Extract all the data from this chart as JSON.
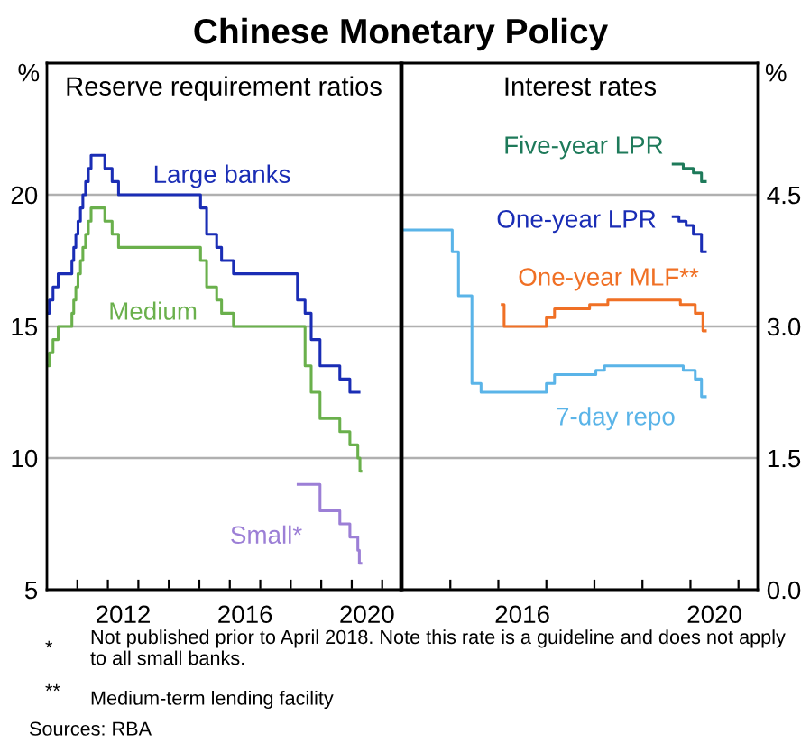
{
  "chart_data": [
    {
      "type": "step",
      "title": "Chinese Monetary Policy",
      "subtitle": "Reserve requirement ratios",
      "ylabel": "%",
      "xlim": [
        2010,
        2021.6
      ],
      "ylim": [
        5,
        25
      ],
      "yticks": [
        5,
        10,
        15,
        20
      ],
      "xticks": [
        {
          "value": 2011,
          "label": null
        },
        {
          "value": 2012,
          "label": null
        },
        {
          "value": 2013,
          "label": null
        },
        {
          "value": 2014,
          "label": null
        },
        {
          "value": 2015,
          "label": null
        },
        {
          "value": 2016,
          "label": null
        },
        {
          "value": 2017,
          "label": null
        },
        {
          "value": 2018,
          "label": null
        },
        {
          "value": 2019,
          "label": null
        },
        {
          "value": 2020,
          "label": null
        },
        {
          "value": 2021,
          "label": null
        },
        {
          "value": 2012.5,
          "label": "2012"
        },
        {
          "value": 2016.5,
          "label": "2016"
        },
        {
          "value": 2020.5,
          "label": "2020"
        }
      ],
      "grid": "y",
      "legend": false,
      "series": [
        {
          "name": "Large banks",
          "color": "#1a2db5",
          "x": [
            2010.0,
            2010.08,
            2010.2,
            2010.37,
            2010.82,
            2010.88,
            2010.95,
            2011.02,
            2011.1,
            2011.18,
            2011.27,
            2011.36,
            2011.45,
            2011.9,
            2012.14,
            2012.35,
            2015.04,
            2015.24,
            2015.57,
            2015.73,
            2016.12,
            2018.22,
            2018.47,
            2018.67,
            2018.96,
            2019.61,
            2019.94,
            2020.24
          ],
          "values": [
            15.5,
            16,
            16.5,
            17,
            17.5,
            18,
            18.5,
            19,
            19.5,
            20,
            20.5,
            21,
            21.5,
            21,
            20.5,
            20,
            19.5,
            18.5,
            18,
            17.5,
            17,
            16,
            15.5,
            14.5,
            13.5,
            13,
            12.5,
            12.5
          ]
        },
        {
          "name": "Medium",
          "color": "#6ab04c",
          "x": [
            2010.0,
            2010.08,
            2010.2,
            2010.37,
            2010.82,
            2010.88,
            2010.95,
            2011.02,
            2011.1,
            2011.18,
            2011.27,
            2011.36,
            2011.45,
            2011.9,
            2012.14,
            2012.35,
            2015.04,
            2015.24,
            2015.57,
            2015.73,
            2016.12,
            2018.47,
            2018.67,
            2018.96,
            2019.61,
            2019.94,
            2020.2,
            2020.27,
            2020.3
          ],
          "values": [
            13.5,
            14,
            14.5,
            15,
            15.5,
            16,
            16.5,
            17,
            17.5,
            18,
            18.5,
            19,
            19.5,
            19,
            18.5,
            18,
            17.5,
            16.5,
            16,
            15.5,
            15,
            13.5,
            12.5,
            11.5,
            11,
            10.5,
            10,
            9.5,
            9.5
          ]
        },
        {
          "name": "Small*",
          "color": "#9c7fd6",
          "x": [
            2018.24,
            2018.96,
            2019.61,
            2019.94,
            2020.2,
            2020.25,
            2020.3
          ],
          "values": [
            9,
            8,
            7.5,
            7,
            6.5,
            6,
            6
          ]
        }
      ],
      "annotations": [
        "*",
        "Not published prior to April 2018. Note this rate is a guideline and does not apply to all small banks.",
        "**",
        "Medium-term lending facility",
        "Sources: RBA"
      ]
    },
    {
      "type": "step",
      "subtitle": "Interest rates",
      "ylabel": "%",
      "xlim": [
        2014,
        2021.4
      ],
      "ylim": [
        0,
        6
      ],
      "yticks": [
        {
          "value": 0,
          "label": "0.0"
        },
        {
          "value": 1.5,
          "label": "1.5"
        },
        {
          "value": 3,
          "label": "3.0"
        },
        {
          "value": 4.5,
          "label": "4.5"
        }
      ],
      "xticks": [
        {
          "value": 2015,
          "label": null
        },
        {
          "value": 2016,
          "label": null
        },
        {
          "value": 2017,
          "label": null
        },
        {
          "value": 2018,
          "label": null
        },
        {
          "value": 2019,
          "label": null
        },
        {
          "value": 2020,
          "label": null
        },
        {
          "value": 2021,
          "label": null
        },
        {
          "value": 2016.5,
          "label": "2016"
        },
        {
          "value": 2020.5,
          "label": "2020"
        }
      ],
      "grid": "y",
      "legend": false,
      "series": [
        {
          "name": "Five-year LPR",
          "color": "#1e7a5a",
          "x": [
            2019.64,
            2019.85,
            2020.06,
            2020.23,
            2020.31
          ],
          "values": [
            4.85,
            4.8,
            4.75,
            4.65,
            4.65
          ]
        },
        {
          "name": "One-year LPR",
          "color": "#1a2db5",
          "x": [
            2019.64,
            2019.76,
            2019.91,
            2020.06,
            2020.23,
            2020.31
          ],
          "values": [
            4.25,
            4.2,
            4.15,
            4.05,
            3.85,
            3.85
          ]
        },
        {
          "name": "One-year MLF**",
          "color": "#f07025",
          "x": [
            2016.08,
            2016.12,
            2017.0,
            2017.17,
            2017.9,
            2018.28,
            2019.79,
            2020.1,
            2020.26,
            2020.31
          ],
          "values": [
            3.25,
            3.0,
            3.1,
            3.2,
            3.25,
            3.3,
            3.25,
            3.15,
            2.95,
            2.95
          ]
        },
        {
          "name": "7-day repo",
          "color": "#5ab4e8",
          "x": [
            2014.0,
            2015.04,
            2015.17,
            2015.45,
            2015.64,
            2017.0,
            2017.17,
            2018.03,
            2018.21,
            2019.85,
            2020.1,
            2020.23,
            2020.31
          ],
          "values": [
            4.1,
            3.85,
            3.35,
            2.35,
            2.25,
            2.35,
            2.45,
            2.5,
            2.55,
            2.5,
            2.4,
            2.2,
            2.2
          ]
        }
      ]
    }
  ]
}
